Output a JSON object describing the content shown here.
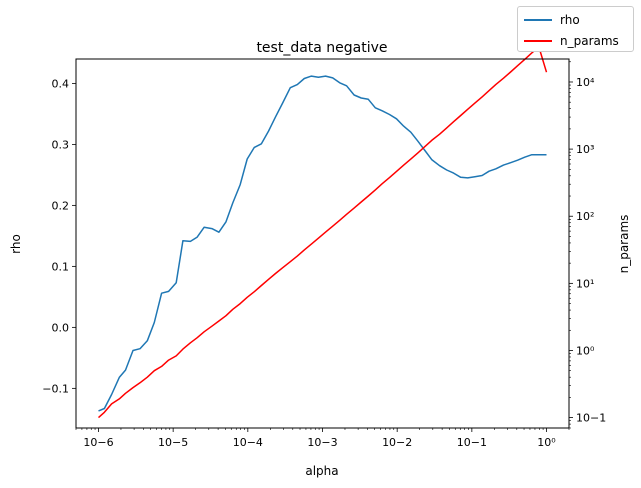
{
  "chart_data": {
    "type": "line",
    "title": "test_data negative",
    "xlabel": "alpha",
    "ylabel": "rho",
    "ylabel_right": "n_params",
    "x_scale": "log",
    "xlim": [
      5e-07,
      2
    ],
    "ylim": [
      -0.165,
      0.44
    ],
    "ylim_right": [
      0.07,
      22000
    ],
    "y_right_scale": "log",
    "x_tick_labels": [
      "10−6",
      "10−5",
      "10−4",
      "10−3",
      "10−2",
      "10−1",
      "10⁰"
    ],
    "x_ticks": [
      1e-06,
      1e-05,
      0.0001,
      0.001,
      0.01,
      0.1,
      1
    ],
    "y_tick_labels": [
      "−0.1",
      "0.0",
      "0.1",
      "0.2",
      "0.3",
      "0.4"
    ],
    "y_ticks": [
      -0.1,
      0.0,
      0.1,
      0.2,
      0.3,
      0.4
    ],
    "y_right_tick_labels": [
      "10−1",
      "10⁰",
      "10¹",
      "10²",
      "10³",
      "10⁴"
    ],
    "y_right_ticks": [
      0.1,
      1,
      10,
      100,
      1000,
      10000
    ],
    "legend_position": "top-right",
    "grid": false,
    "series": [
      {
        "name": "rho",
        "axis": "left",
        "color": "#1f77b4",
        "x": [
          1e-06,
          1.2e-06,
          1.5e-06,
          1.9e-06,
          2.3e-06,
          2.9e-06,
          3.6e-06,
          4.5e-06,
          5.6e-06,
          7e-06,
          8.7e-06,
          1.1e-05,
          1.35e-05,
          1.7e-05,
          2.1e-05,
          2.6e-05,
          3.3e-05,
          4.1e-05,
          5.1e-05,
          6.3e-05,
          7.9e-05,
          9.8e-05,
          0.000122,
          0.000152,
          0.00019,
          0.000235,
          0.00029,
          0.00037,
          0.00046,
          0.00057,
          0.00071,
          0.00088,
          0.0011,
          0.00137,
          0.0017,
          0.0021,
          0.00265,
          0.0033,
          0.0041,
          0.0051,
          0.0063,
          0.0079,
          0.0098,
          0.0122,
          0.0152,
          0.019,
          0.0235,
          0.029,
          0.037,
          0.046,
          0.057,
          0.071,
          0.088,
          0.11,
          0.137,
          0.17,
          0.21,
          0.265,
          0.33,
          0.41,
          0.51,
          0.63,
          0.79,
          1.0
        ],
        "values": [
          -0.137,
          -0.133,
          -0.11,
          -0.082,
          -0.07,
          -0.038,
          -0.035,
          -0.022,
          0.008,
          0.056,
          0.059,
          0.073,
          0.142,
          0.141,
          0.148,
          0.164,
          0.162,
          0.156,
          0.173,
          0.204,
          0.234,
          0.276,
          0.295,
          0.301,
          0.322,
          0.345,
          0.367,
          0.393,
          0.398,
          0.408,
          0.412,
          0.41,
          0.412,
          0.409,
          0.401,
          0.396,
          0.381,
          0.376,
          0.374,
          0.36,
          0.355,
          0.349,
          0.342,
          0.33,
          0.32,
          0.305,
          0.29,
          0.275,
          0.265,
          0.258,
          0.253,
          0.246,
          0.245,
          0.247,
          0.249,
          0.256,
          0.26,
          0.266,
          0.27,
          0.274,
          0.279,
          0.283,
          0.283,
          0.283
        ]
      },
      {
        "name": "n_params",
        "axis": "right",
        "color": "#ff0000",
        "x": [
          1e-06,
          1.2e-06,
          1.5e-06,
          1.9e-06,
          2.3e-06,
          2.9e-06,
          3.6e-06,
          4.5e-06,
          5.6e-06,
          7e-06,
          8.7e-06,
          1.1e-05,
          1.35e-05,
          1.7e-05,
          2.1e-05,
          2.6e-05,
          3.3e-05,
          4.1e-05,
          5.1e-05,
          6.3e-05,
          7.9e-05,
          9.8e-05,
          0.000122,
          0.000152,
          0.00019,
          0.000235,
          0.00029,
          0.00037,
          0.00046,
          0.00057,
          0.00071,
          0.00088,
          0.0011,
          0.00137,
          0.0017,
          0.0021,
          0.00265,
          0.0033,
          0.0041,
          0.0051,
          0.0063,
          0.0079,
          0.0098,
          0.0122,
          0.0152,
          0.019,
          0.0235,
          0.029,
          0.037,
          0.046,
          0.057,
          0.071,
          0.088,
          0.11,
          0.137,
          0.17,
          0.21,
          0.265,
          0.33,
          0.41,
          0.51,
          0.63,
          0.79,
          1.0
        ],
        "values": [
          0.1,
          0.12,
          0.16,
          0.19,
          0.23,
          0.28,
          0.33,
          0.4,
          0.5,
          0.58,
          0.72,
          0.83,
          1.05,
          1.3,
          1.55,
          1.9,
          2.3,
          2.75,
          3.3,
          4.1,
          5.0,
          6.2,
          7.5,
          9.3,
          11.5,
          14.0,
          17.0,
          21.0,
          25.5,
          31.5,
          38.5,
          47.0,
          58.0,
          71.0,
          87.0,
          107,
          132,
          163,
          200,
          247,
          305,
          376,
          465,
          575,
          710,
          880,
          1090,
          1350,
          1670,
          2070,
          2560,
          3170,
          3920,
          4850,
          6000,
          7430,
          9200,
          11400,
          14100,
          17500,
          21700,
          26800,
          33200,
          14000
        ]
      }
    ]
  }
}
